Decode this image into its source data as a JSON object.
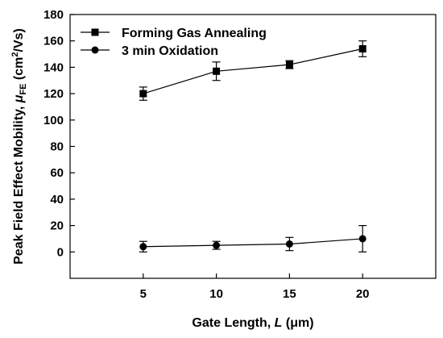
{
  "chart_data": {
    "type": "line",
    "xlabel_text": "Gate Length, ",
    "xlabel_var": "L",
    "xlabel_unit": " (μm)",
    "ylabel_text": "Peak Field Effect Mobility, ",
    "ylabel_var": "μ",
    "ylabel_sub": "FE",
    "ylabel_unit_open": " (cm",
    "ylabel_sup": "2",
    "ylabel_unit_close": "/Vs)",
    "xlim": [
      0,
      25
    ],
    "ylim": [
      -20,
      180
    ],
    "xticks": [
      5,
      10,
      15,
      20
    ],
    "yticks": [
      0,
      20,
      40,
      60,
      80,
      100,
      120,
      140,
      160,
      180
    ],
    "grid": false,
    "legend_position": "top-left",
    "series": [
      {
        "name": "Forming Gas Annealing",
        "marker": "square",
        "color": "#000000",
        "points": [
          {
            "x": 5,
            "y": 120,
            "err": 5
          },
          {
            "x": 10,
            "y": 137,
            "err": 7
          },
          {
            "x": 15,
            "y": 142,
            "err": 3
          },
          {
            "x": 20,
            "y": 154,
            "err": 6
          }
        ]
      },
      {
        "name": "3 min Oxidation",
        "marker": "circle",
        "color": "#000000",
        "points": [
          {
            "x": 5,
            "y": 4,
            "err": 4
          },
          {
            "x": 10,
            "y": 5,
            "err": 3
          },
          {
            "x": 15,
            "y": 6,
            "err": 5
          },
          {
            "x": 20,
            "y": 10,
            "err": 10
          }
        ]
      }
    ]
  }
}
